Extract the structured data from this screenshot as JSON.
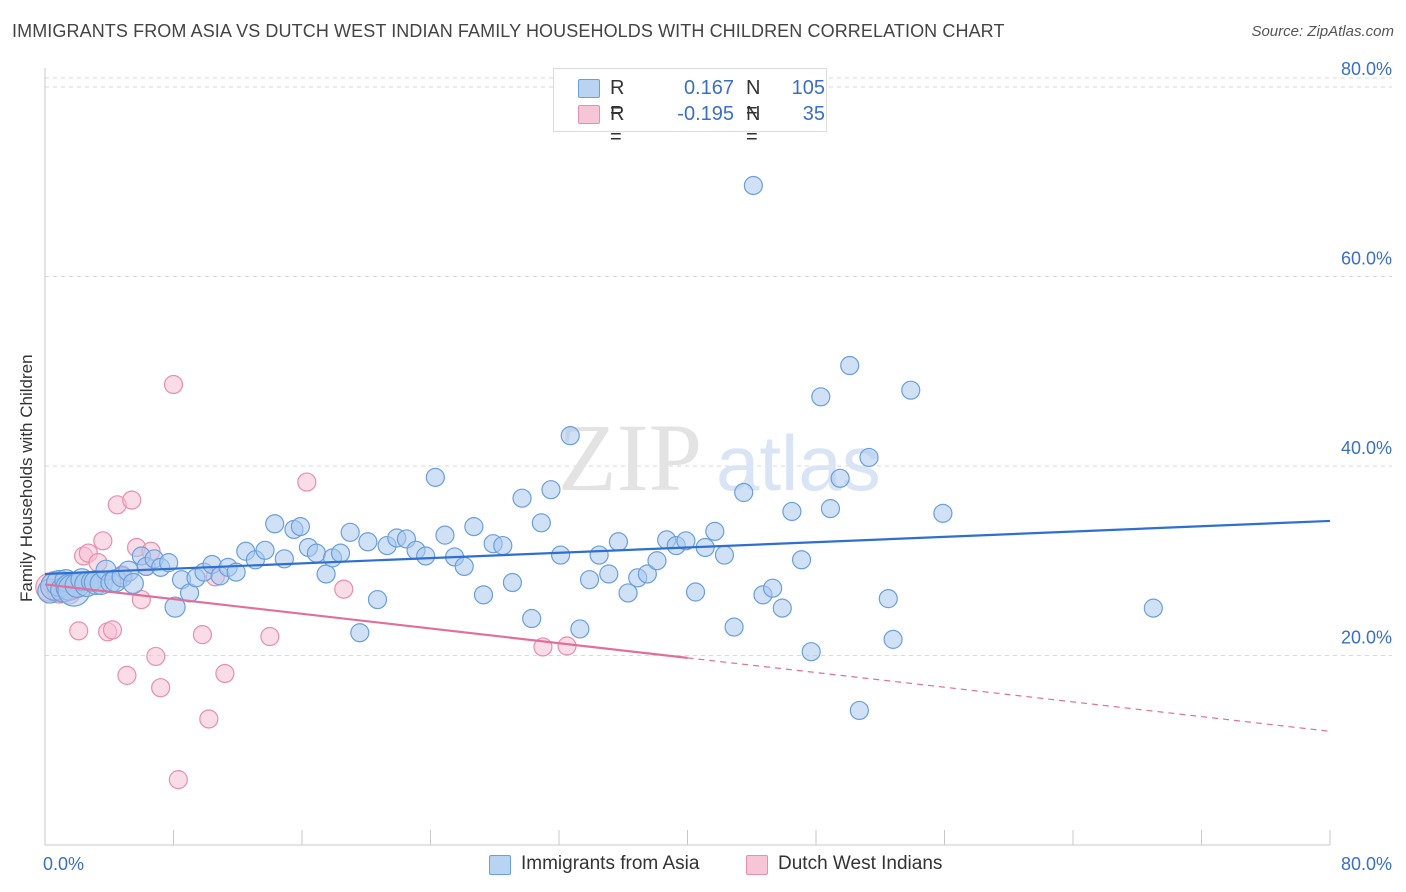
{
  "header": {
    "title": "IMMIGRANTS FROM ASIA VS DUTCH WEST INDIAN FAMILY HOUSEHOLDS WITH CHILDREN CORRELATION CHART",
    "source": "Source: ZipAtlas.com"
  },
  "watermark": {
    "zip": "ZIP",
    "atlas": "atlas"
  },
  "legend": {
    "series1": {
      "r_label": "R =",
      "r_value": "0.167",
      "n_label": "N =",
      "n_value": "105"
    },
    "series2": {
      "r_label": "R =",
      "r_value": "-0.195",
      "n_label": "N =",
      "n_value": "35"
    }
  },
  "colors": {
    "blue_fill": "#a9c8ee",
    "blue_stroke": "#6a9fdc",
    "blue_line": "#2f6fd0",
    "pink_fill": "#f5bfd1",
    "pink_stroke": "#e88fab",
    "pink_line": "#e0709a",
    "axis_text": "#3a6fc4",
    "grid": "#d9d9d9"
  },
  "chart_data": {
    "type": "scatter",
    "title": "IMMIGRANTS FROM ASIA VS DUTCH WEST INDIAN FAMILY HOUSEHOLDS WITH CHILDREN CORRELATION CHART",
    "xlabel": "",
    "ylabel": "Family Households with Children",
    "xlim": [
      0,
      80
    ],
    "ylim": [
      0,
      82
    ],
    "x_tick_labels": [
      "0.0%",
      "80.0%"
    ],
    "y_ticks": [
      20,
      40,
      60,
      80
    ],
    "y_tick_labels": [
      "20.0%",
      "40.0%",
      "60.0%",
      "80.0%"
    ],
    "series": [
      {
        "name": "Immigrants from Asia",
        "color": "#6a9fdc",
        "trend": {
          "x": [
            0,
            80
          ],
          "y": [
            28.6,
            34.2
          ],
          "solid_to": 80
        },
        "points": [
          [
            0.3,
            26.8,
            12
          ],
          [
            0.6,
            27.3,
            14
          ],
          [
            0.9,
            27.6,
            13
          ],
          [
            1.1,
            26.9,
            12
          ],
          [
            1.3,
            27.9,
            11
          ],
          [
            1.5,
            27.2,
            13
          ],
          [
            1.8,
            26.9,
            16
          ],
          [
            2.0,
            27.4,
            12
          ],
          [
            2.3,
            28.0,
            11
          ],
          [
            2.6,
            27.5,
            12
          ],
          [
            2.9,
            27.8,
            10
          ],
          [
            3.2,
            27.7,
            12
          ],
          [
            3.5,
            27.6,
            11
          ],
          [
            3.8,
            29.0,
            10
          ],
          [
            4.1,
            27.7,
            10
          ],
          [
            4.4,
            27.9,
            11
          ],
          [
            4.8,
            28.3,
            10
          ],
          [
            5.2,
            28.9,
            10
          ],
          [
            5.5,
            27.6,
            10
          ],
          [
            6.0,
            30.5,
            9
          ],
          [
            6.3,
            29.4,
            9
          ],
          [
            6.8,
            30.2,
            9
          ],
          [
            7.2,
            29.3,
            9
          ],
          [
            7.7,
            29.8,
            9
          ],
          [
            8.1,
            25.1,
            10
          ],
          [
            8.5,
            28.0,
            9
          ],
          [
            9.0,
            26.6,
            9
          ],
          [
            9.4,
            28.2,
            9
          ],
          [
            9.9,
            28.8,
            9
          ],
          [
            10.4,
            29.6,
            9
          ],
          [
            10.9,
            28.4,
            9
          ],
          [
            11.4,
            29.3,
            9
          ],
          [
            11.9,
            28.8,
            9
          ],
          [
            12.5,
            31.0,
            9
          ],
          [
            13.1,
            30.1,
            9
          ],
          [
            13.7,
            31.1,
            9
          ],
          [
            14.3,
            33.9,
            9
          ],
          [
            14.9,
            30.2,
            9
          ],
          [
            15.5,
            33.3,
            9
          ],
          [
            15.9,
            33.6,
            9
          ],
          [
            16.4,
            31.4,
            9
          ],
          [
            16.9,
            30.8,
            9
          ],
          [
            17.5,
            28.6,
            9
          ],
          [
            17.9,
            30.3,
            9
          ],
          [
            18.4,
            30.8,
            9
          ],
          [
            19.0,
            33.0,
            9
          ],
          [
            19.6,
            22.4,
            9
          ],
          [
            20.1,
            32.0,
            9
          ],
          [
            20.7,
            25.9,
            9
          ],
          [
            21.3,
            31.6,
            9
          ],
          [
            21.9,
            32.4,
            9
          ],
          [
            22.5,
            32.3,
            9
          ],
          [
            23.1,
            31.1,
            9
          ],
          [
            23.7,
            30.5,
            9
          ],
          [
            24.3,
            38.8,
            9
          ],
          [
            24.9,
            32.7,
            9
          ],
          [
            25.5,
            30.4,
            9
          ],
          [
            26.1,
            29.4,
            9
          ],
          [
            26.7,
            33.6,
            9
          ],
          [
            27.3,
            26.4,
            9
          ],
          [
            27.9,
            31.8,
            9
          ],
          [
            28.5,
            31.6,
            9
          ],
          [
            29.1,
            27.7,
            9
          ],
          [
            29.7,
            36.6,
            9
          ],
          [
            30.3,
            23.9,
            9
          ],
          [
            30.9,
            34.0,
            9
          ],
          [
            31.5,
            37.5,
            9
          ],
          [
            32.1,
            30.6,
            9
          ],
          [
            32.7,
            43.2,
            9
          ],
          [
            33.3,
            22.8,
            9
          ],
          [
            33.9,
            28.0,
            9
          ],
          [
            34.5,
            30.6,
            9
          ],
          [
            35.1,
            28.6,
            9
          ],
          [
            35.7,
            32.0,
            9
          ],
          [
            36.3,
            26.6,
            9
          ],
          [
            36.9,
            28.2,
            9
          ],
          [
            37.5,
            28.6,
            9
          ],
          [
            38.1,
            30.0,
            9
          ],
          [
            38.7,
            32.2,
            9
          ],
          [
            39.3,
            31.6,
            9
          ],
          [
            39.9,
            32.1,
            9
          ],
          [
            40.5,
            26.7,
            9
          ],
          [
            41.1,
            31.4,
            9
          ],
          [
            41.7,
            33.1,
            9
          ],
          [
            42.3,
            30.6,
            9
          ],
          [
            42.9,
            23.0,
            9
          ],
          [
            43.5,
            37.2,
            9
          ],
          [
            44.1,
            69.6,
            9
          ],
          [
            44.7,
            26.4,
            9
          ],
          [
            45.3,
            27.1,
            9
          ],
          [
            45.9,
            25.0,
            9
          ],
          [
            46.5,
            35.2,
            9
          ],
          [
            47.1,
            30.1,
            9
          ],
          [
            47.7,
            20.4,
            9
          ],
          [
            48.3,
            47.3,
            9
          ],
          [
            48.9,
            35.5,
            9
          ],
          [
            49.5,
            38.7,
            9
          ],
          [
            50.1,
            50.6,
            9
          ],
          [
            50.7,
            14.2,
            9
          ],
          [
            51.3,
            40.9,
            9
          ],
          [
            52.5,
            26.0,
            9
          ],
          [
            52.8,
            21.7,
            9
          ],
          [
            53.9,
            48.0,
            9
          ],
          [
            55.9,
            35.0,
            9
          ],
          [
            69.0,
            25.0,
            9
          ]
        ]
      },
      {
        "name": "Dutch West Indians",
        "color": "#e88fab",
        "trend": {
          "x": [
            0,
            80
          ],
          "y": [
            27.5,
            12.0
          ],
          "solid_to": 40
        },
        "points": [
          [
            0.3,
            27.2,
            14
          ],
          [
            0.6,
            27.6,
            12
          ],
          [
            0.9,
            26.8,
            12
          ],
          [
            1.2,
            26.9,
            12
          ],
          [
            1.5,
            26.6,
            11
          ],
          [
            1.8,
            27.0,
            10
          ],
          [
            2.1,
            22.6,
            9
          ],
          [
            2.4,
            30.5,
            9
          ],
          [
            2.7,
            30.8,
            9
          ],
          [
            3.0,
            27.8,
            9
          ],
          [
            3.3,
            29.8,
            9
          ],
          [
            3.6,
            32.1,
            9
          ],
          [
            3.9,
            22.5,
            9
          ],
          [
            4.2,
            22.7,
            9
          ],
          [
            4.5,
            35.9,
            9
          ],
          [
            4.8,
            28.5,
            9
          ],
          [
            5.1,
            17.9,
            9
          ],
          [
            5.4,
            36.4,
            9
          ],
          [
            5.7,
            31.4,
            9
          ],
          [
            6.0,
            25.9,
            9
          ],
          [
            6.3,
            29.4,
            9
          ],
          [
            6.6,
            31.0,
            9
          ],
          [
            6.9,
            19.9,
            9
          ],
          [
            7.2,
            16.6,
            9
          ],
          [
            8.0,
            48.6,
            9
          ],
          [
            8.3,
            6.9,
            9
          ],
          [
            9.8,
            22.2,
            9
          ],
          [
            10.2,
            13.3,
            9
          ],
          [
            10.6,
            28.3,
            9
          ],
          [
            11.2,
            18.1,
            9
          ],
          [
            14.0,
            22.0,
            9
          ],
          [
            16.3,
            38.3,
            9
          ],
          [
            18.6,
            27.0,
            9
          ],
          [
            31.0,
            20.9,
            9
          ],
          [
            32.5,
            21.0,
            9
          ]
        ]
      }
    ]
  },
  "bottom_legend": {
    "series1_label": "Immigrants from Asia",
    "series2_label": "Dutch West Indians"
  }
}
